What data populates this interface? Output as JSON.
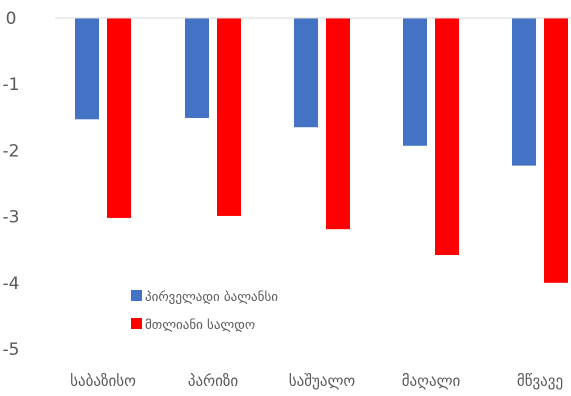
{
  "chart_data": {
    "type": "bar",
    "categories": [
      "საბაზისო",
      "პარიზი",
      "საშუალო",
      "მაღალი",
      "მწვავე"
    ],
    "series": [
      {
        "name": "პირველადი ბალანსი",
        "color": "#4472C4",
        "values": [
          -1.53,
          -1.51,
          -1.65,
          -1.93,
          -2.23
        ]
      },
      {
        "name": "მთლიანი სალდო",
        "color": "#FF0000",
        "values": [
          -3.02,
          -2.99,
          -3.19,
          -3.58,
          -4.0
        ]
      }
    ],
    "ylim": [
      -5,
      0
    ],
    "yticks": [
      "0",
      "-1",
      "-2",
      "-3",
      "-4",
      "-5"
    ],
    "legend_position": "bottom-left",
    "grid": false
  }
}
